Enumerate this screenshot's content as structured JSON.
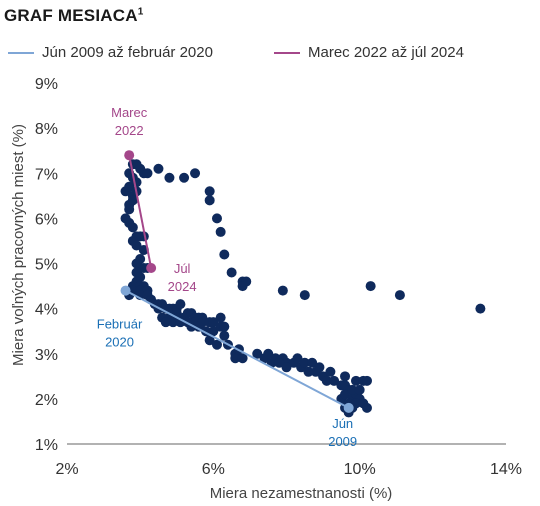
{
  "title": "GRAF MESIACA",
  "title_sup": "1",
  "chart_data": {
    "type": "scatter",
    "xlabel": "Miera nezamestnanosti (%)",
    "ylabel": "Miera voľných pracovných miest (%)",
    "xlim": [
      2,
      14
    ],
    "ylim": [
      1,
      9
    ],
    "x_ticks": [
      "2%",
      "6%",
      "10%",
      "14%"
    ],
    "y_ticks": [
      "1%",
      "2%",
      "3%",
      "4%",
      "5%",
      "6%",
      "7%",
      "8%",
      "9%"
    ],
    "grid": false,
    "legend_position": "top",
    "legend": [
      {
        "label": "Jún 2009 až február 2020",
        "color": "#7fa6d6"
      },
      {
        "label": "Marec 2022 až júl 2024",
        "color": "#a4478a"
      }
    ],
    "points_color": "#0f2a5c",
    "points": [
      [
        3.6,
        6.0
      ],
      [
        3.7,
        6.3
      ],
      [
        3.8,
        6.5
      ],
      [
        3.6,
        6.6
      ],
      [
        3.7,
        6.7
      ],
      [
        3.7,
        7.0
      ],
      [
        3.9,
        7.2
      ],
      [
        3.8,
        7.2
      ],
      [
        4.0,
        7.1
      ],
      [
        4.1,
        7.0
      ],
      [
        4.2,
        7.0
      ],
      [
        3.8,
        6.9
      ],
      [
        3.9,
        6.8
      ],
      [
        3.9,
        6.6
      ],
      [
        3.8,
        6.4
      ],
      [
        3.7,
        6.2
      ],
      [
        3.7,
        5.9
      ],
      [
        3.8,
        5.8
      ],
      [
        3.9,
        5.6
      ],
      [
        4.0,
        5.6
      ],
      [
        4.1,
        5.6
      ],
      [
        3.8,
        5.5
      ],
      [
        3.9,
        5.4
      ],
      [
        4.1,
        5.3
      ],
      [
        4.0,
        5.1
      ],
      [
        3.9,
        5.0
      ],
      [
        4.0,
        4.9
      ],
      [
        4.1,
        4.9
      ],
      [
        4.2,
        4.9
      ],
      [
        3.9,
        4.8
      ],
      [
        4.0,
        4.7
      ],
      [
        3.9,
        4.6
      ],
      [
        3.8,
        4.5
      ],
      [
        4.0,
        4.5
      ],
      [
        4.1,
        4.5
      ],
      [
        3.8,
        4.4
      ],
      [
        4.0,
        4.4
      ],
      [
        4.2,
        4.4
      ],
      [
        3.7,
        4.3
      ],
      [
        4.0,
        4.3
      ],
      [
        4.2,
        4.3
      ],
      [
        4.3,
        4.2
      ],
      [
        4.4,
        4.1
      ],
      [
        4.5,
        4.1
      ],
      [
        4.6,
        4.1
      ],
      [
        4.5,
        4.0
      ],
      [
        4.7,
        4.0
      ],
      [
        4.8,
        4.0
      ],
      [
        4.9,
        4.0
      ],
      [
        5.0,
        4.0
      ],
      [
        5.1,
        4.1
      ],
      [
        5.0,
        3.9
      ],
      [
        4.6,
        3.8
      ],
      [
        4.8,
        3.8
      ],
      [
        5.0,
        3.8
      ],
      [
        5.2,
        3.8
      ],
      [
        5.3,
        3.9
      ],
      [
        5.4,
        3.9
      ],
      [
        5.5,
        3.8
      ],
      [
        5.6,
        3.8
      ],
      [
        5.7,
        3.8
      ],
      [
        4.7,
        3.7
      ],
      [
        4.9,
        3.7
      ],
      [
        5.1,
        3.7
      ],
      [
        5.3,
        3.7
      ],
      [
        5.5,
        3.7
      ],
      [
        5.7,
        3.7
      ],
      [
        5.9,
        3.7
      ],
      [
        6.0,
        3.7
      ],
      [
        5.4,
        3.6
      ],
      [
        5.6,
        3.6
      ],
      [
        5.8,
        3.5
      ],
      [
        6.0,
        3.5
      ],
      [
        6.2,
        3.6
      ],
      [
        6.3,
        3.4
      ],
      [
        5.9,
        3.3
      ],
      [
        6.1,
        3.2
      ],
      [
        6.4,
        3.2
      ],
      [
        6.6,
        3.0
      ],
      [
        6.6,
        2.9
      ],
      [
        6.8,
        2.9
      ],
      [
        6.7,
        3.1
      ],
      [
        7.2,
        3.0
      ],
      [
        7.4,
        2.9
      ],
      [
        7.6,
        2.8
      ],
      [
        7.5,
        3.0
      ],
      [
        7.7,
        2.9
      ],
      [
        7.9,
        2.9
      ],
      [
        8.0,
        2.8
      ],
      [
        8.2,
        2.8
      ],
      [
        8.4,
        2.7
      ],
      [
        7.8,
        2.8
      ],
      [
        8.0,
        2.7
      ],
      [
        8.3,
        2.9
      ],
      [
        8.5,
        2.8
      ],
      [
        8.7,
        2.8
      ],
      [
        8.9,
        2.7
      ],
      [
        8.6,
        2.6
      ],
      [
        8.8,
        2.6
      ],
      [
        9.0,
        2.5
      ],
      [
        9.2,
        2.6
      ],
      [
        9.1,
        2.4
      ],
      [
        9.3,
        2.4
      ],
      [
        9.5,
        2.3
      ],
      [
        9.6,
        2.3
      ],
      [
        9.7,
        2.2
      ],
      [
        9.5,
        2.0
      ],
      [
        9.6,
        2.1
      ],
      [
        9.8,
        2.0
      ],
      [
        9.9,
        2.1
      ],
      [
        10.0,
        2.0
      ],
      [
        9.7,
        1.9
      ],
      [
        9.9,
        1.9
      ],
      [
        10.1,
        1.9
      ],
      [
        10.2,
        1.8
      ],
      [
        9.6,
        1.8
      ],
      [
        9.8,
        1.8
      ],
      [
        9.7,
        1.7
      ],
      [
        9.9,
        2.4
      ],
      [
        10.1,
        2.4
      ],
      [
        10.2,
        2.4
      ],
      [
        9.8,
        2.2
      ],
      [
        10.0,
        2.2
      ],
      [
        9.6,
        2.5
      ],
      [
        4.5,
        7.1
      ],
      [
        4.8,
        6.9
      ],
      [
        5.2,
        6.9
      ],
      [
        5.5,
        7.0
      ],
      [
        5.9,
        6.6
      ],
      [
        5.9,
        6.4
      ],
      [
        6.1,
        6.0
      ],
      [
        6.2,
        5.7
      ],
      [
        6.3,
        5.2
      ],
      [
        6.5,
        4.8
      ],
      [
        6.8,
        4.6
      ],
      [
        6.9,
        4.6
      ],
      [
        6.8,
        4.5
      ],
      [
        7.9,
        4.4
      ],
      [
        8.5,
        4.3
      ],
      [
        10.3,
        4.5
      ],
      [
        11.1,
        4.3
      ],
      [
        13.3,
        4.0
      ],
      [
        6.2,
        3.8
      ],
      [
        6.3,
        3.6
      ]
    ],
    "series": [
      {
        "name": "Jún 2009 až február 2020",
        "x": [
          9.7,
          3.6
        ],
        "y": [
          1.8,
          4.4
        ],
        "color": "#7fa6d6"
      },
      {
        "name": "Marec 2022 až júl 2024",
        "x": [
          3.7,
          4.3
        ],
        "y": [
          7.4,
          4.9
        ],
        "color": "#a4478a"
      }
    ],
    "annotations": [
      {
        "lines": [
          "Marec",
          "2022"
        ],
        "x": 3.7,
        "y": 7.4,
        "color": "#a4478a"
      },
      {
        "lines": [
          "Júl",
          "2024"
        ],
        "x": 4.3,
        "y": 4.9,
        "color": "#a4478a"
      },
      {
        "lines": [
          "Február",
          "2020"
        ],
        "x": 3.6,
        "y": 4.4,
        "color": "#1a6fb5"
      },
      {
        "lines": [
          "Jún",
          "2009"
        ],
        "x": 9.7,
        "y": 1.8,
        "color": "#1a6fb5"
      }
    ]
  }
}
